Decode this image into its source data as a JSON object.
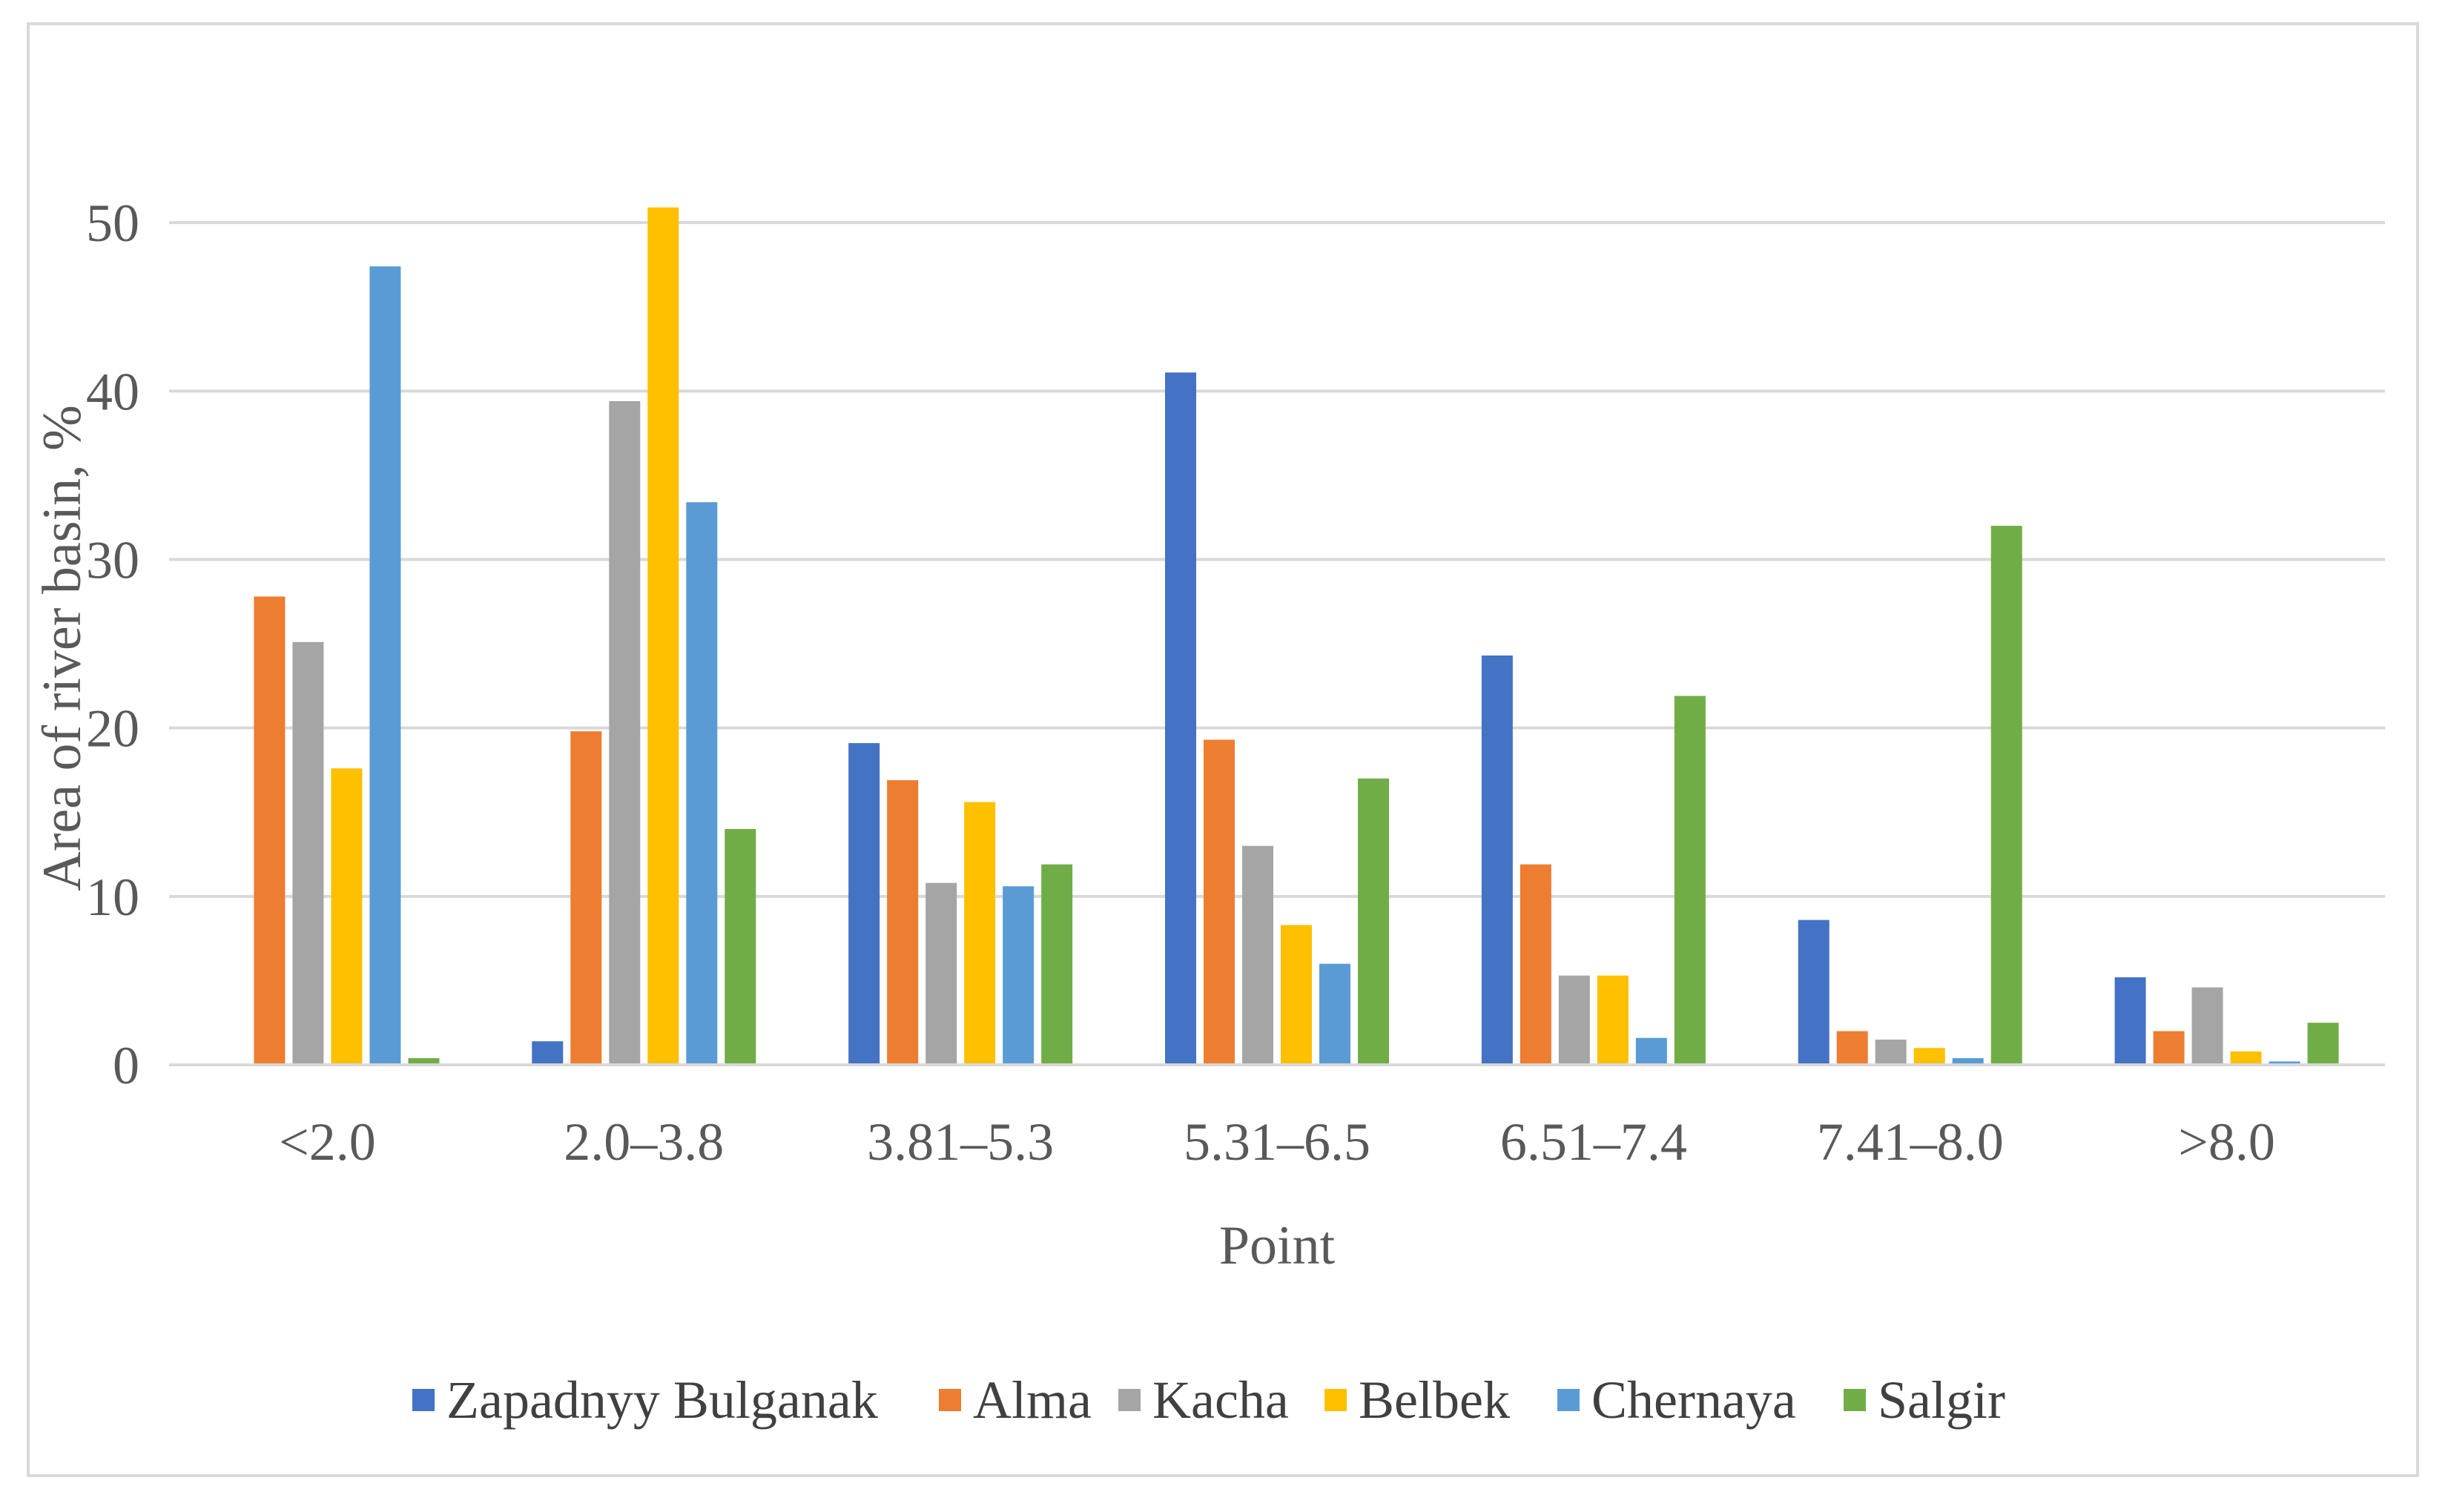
{
  "chart_data": {
    "type": "bar",
    "title": "",
    "xlabel": "Point",
    "ylabel": "Area of river basin, %",
    "ylim": [
      0,
      50
    ],
    "yticks": [
      0,
      10,
      20,
      30,
      40,
      50
    ],
    "grid": true,
    "legend_position": "bottom",
    "categories": [
      "<2.0",
      "2.0–3.8",
      "3.81–5.3",
      "5.31–6.5",
      "6.51–7.4",
      "7.41–8.0",
      ">8.0"
    ],
    "series": [
      {
        "name": "Zapadnyy Bulganak",
        "color": "#4472c4",
        "values": [
          0,
          1.4,
          19.1,
          41.1,
          24.3,
          8.6,
          5.2
        ]
      },
      {
        "name": "Alma",
        "color": "#ed7d31",
        "values": [
          27.8,
          19.8,
          16.9,
          19.3,
          11.9,
          2.0,
          2.0
        ]
      },
      {
        "name": "Kacha",
        "color": "#a5a5a5",
        "values": [
          25.1,
          39.4,
          10.8,
          13.0,
          5.3,
          1.5,
          4.6
        ]
      },
      {
        "name": "Belbek",
        "color": "#ffc000",
        "values": [
          17.6,
          50.9,
          15.6,
          8.3,
          5.3,
          1.0,
          0.8
        ]
      },
      {
        "name": "Chernaya",
        "color": "#5b9bd5",
        "values": [
          47.4,
          33.4,
          10.6,
          6.0,
          1.6,
          0.4,
          0.2
        ]
      },
      {
        "name": "Salgir",
        "color": "#70ad47",
        "values": [
          0.4,
          14.0,
          11.9,
          17.0,
          21.9,
          32.0,
          2.5
        ]
      }
    ]
  }
}
